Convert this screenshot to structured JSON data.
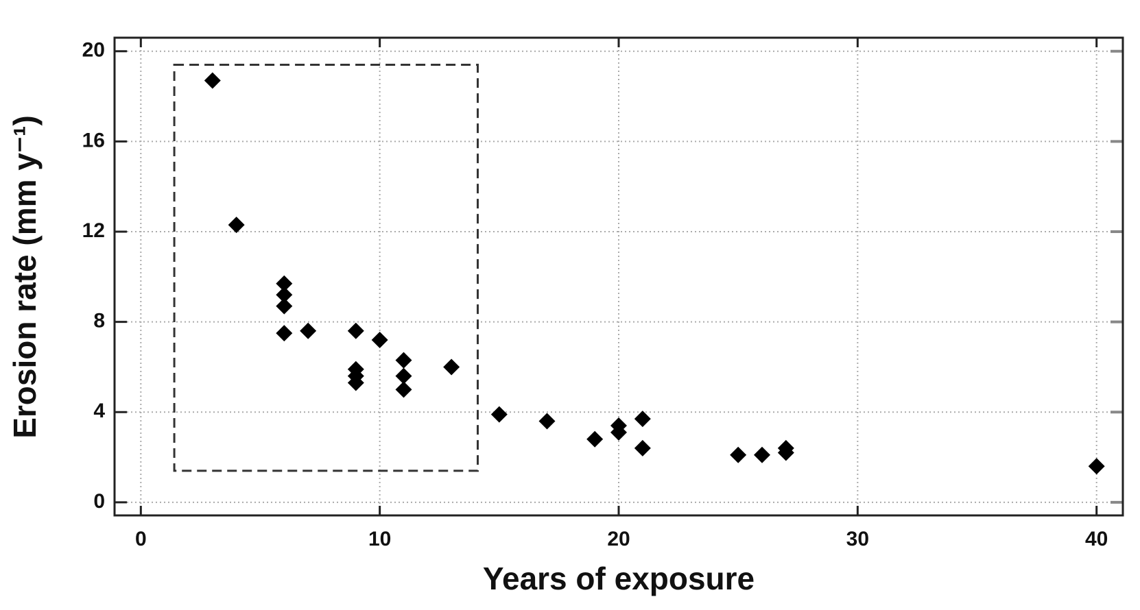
{
  "chart_data": {
    "type": "scatter",
    "xlabel": "Years of exposure",
    "ylabel": "Erosion rate (mm y⁻¹)",
    "series": [
      {
        "name": "Erosion rate",
        "color": "#000000",
        "x": [
          3,
          4,
          6,
          6,
          6,
          6,
          7,
          9,
          9,
          9,
          9,
          10,
          11,
          11,
          11,
          13,
          15,
          17,
          19,
          20,
          20,
          21,
          21,
          25,
          26,
          27,
          27,
          40
        ],
        "values": [
          18.7,
          12.3,
          9.7,
          9.2,
          8.7,
          7.5,
          7.6,
          7.6,
          5.9,
          5.6,
          5.3,
          7.2,
          6.3,
          5.6,
          5.0,
          6.0,
          3.9,
          3.6,
          2.8,
          3.4,
          3.1,
          3.7,
          2.4,
          2.1,
          2.1,
          2.4,
          2.2,
          1.6
        ]
      }
    ],
    "highlight_region": {
      "x": [
        1.4,
        14.1
      ],
      "y": [
        1.4,
        19.4
      ]
    },
    "xlim": [
      -1.1,
      41.1
    ],
    "ylim": [
      -0.58,
      20.6
    ],
    "xticks": [
      0,
      10,
      20,
      30,
      40
    ],
    "yticks": [
      0,
      4,
      8,
      12,
      16,
      20
    ],
    "grid": true
  }
}
